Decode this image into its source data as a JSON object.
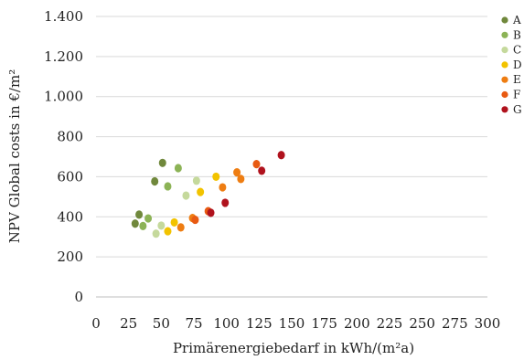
{
  "chart_data": {
    "type": "scatter",
    "xlabel": "Primärenergiebedarf  in kWh/(m²a)",
    "ylabel": "NPV Global costs in €/m²",
    "xlim": [
      0,
      300
    ],
    "ylim": [
      0,
      1400
    ],
    "x_ticks": [
      0,
      25,
      50,
      75,
      100,
      125,
      150,
      175,
      200,
      225,
      250,
      275,
      300
    ],
    "y_ticks": [
      0,
      200,
      400,
      600,
      800,
      1000,
      1200,
      1400
    ],
    "x_tick_labels": [
      "0",
      "25",
      "50",
      "75",
      "100",
      "125",
      "150",
      "175",
      "200",
      "225",
      "250",
      "275",
      "300"
    ],
    "y_tick_labels": [
      "0",
      "200",
      "400",
      "600",
      "800",
      "1.000",
      "1.200",
      "1.400"
    ],
    "grid": "horizontal",
    "legend": "right",
    "series": [
      {
        "name": "A",
        "color": "#70883c",
        "points": [
          [
            30,
            366
          ],
          [
            33,
            411
          ],
          [
            45,
            577
          ],
          [
            51,
            669
          ]
        ]
      },
      {
        "name": "B",
        "color": "#8cb356",
        "points": [
          [
            36,
            354
          ],
          [
            40,
            392
          ],
          [
            55,
            552
          ],
          [
            63,
            643
          ]
        ]
      },
      {
        "name": "C",
        "color": "#c5d99c",
        "points": [
          [
            46,
            316
          ],
          [
            50,
            356
          ],
          [
            69,
            506
          ],
          [
            77,
            580
          ]
        ]
      },
      {
        "name": "D",
        "color": "#f2c300",
        "points": [
          [
            55,
            328
          ],
          [
            60,
            372
          ],
          [
            80,
            524
          ],
          [
            92,
            600
          ]
        ]
      },
      {
        "name": "E",
        "color": "#ee7d12",
        "points": [
          [
            65,
            347
          ],
          [
            74,
            394
          ],
          [
            97,
            547
          ],
          [
            108,
            622
          ],
          [
            111,
            589
          ]
        ]
      },
      {
        "name": "F",
        "color": "#e85a12",
        "points": [
          [
            76,
            385
          ],
          [
            86,
            428
          ],
          [
            123,
            663
          ]
        ]
      },
      {
        "name": "G",
        "color": "#b0121d",
        "points": [
          [
            88,
            420
          ],
          [
            99,
            470
          ],
          [
            127,
            630
          ],
          [
            142,
            708
          ]
        ]
      }
    ]
  }
}
